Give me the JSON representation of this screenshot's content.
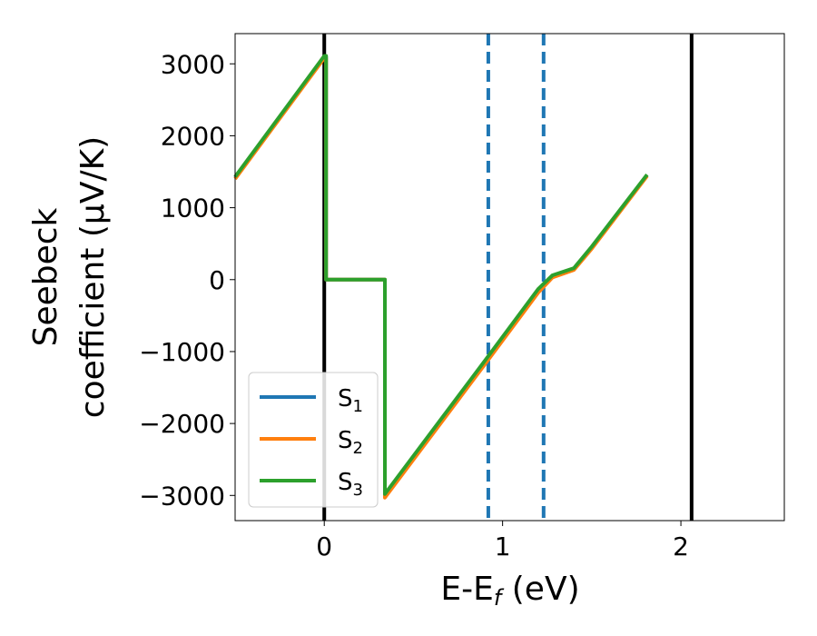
{
  "chart_data": {
    "type": "line",
    "xlabel": "E-E",
    "xlabel_sub": "f",
    "xlabel_unit": " (eV)",
    "ylabel_line1": "Seebeck",
    "ylabel_line2": "coefficient  (μV/K)",
    "xlim": [
      -0.5,
      2.58
    ],
    "ylim": [
      -3350,
      3420
    ],
    "xticks": [
      0,
      1,
      2
    ],
    "xtick_labels": [
      "0",
      "1",
      "2"
    ],
    "yticks": [
      3000,
      2000,
      1000,
      0,
      -1000,
      -2000,
      -3000
    ],
    "ytick_labels": [
      "3000",
      "2000",
      "1000",
      "0",
      "−1000",
      "−2000",
      "−3000"
    ],
    "grid": false,
    "legend_position": "lower-left",
    "series": [
      {
        "name": "S",
        "name_sub": "1",
        "color": "#1f77b4",
        "x": [
          -0.5,
          0.0,
          0.01,
          0.01,
          0.34,
          0.34,
          0.9,
          1.2,
          1.28,
          1.4,
          1.5,
          1.81
        ],
        "y": [
          1420,
          3100,
          3100,
          0,
          0,
          -3000,
          -1150,
          -150,
          50,
          150,
          450,
          1450
        ]
      },
      {
        "name": "S",
        "name_sub": "2",
        "color": "#ff7f0e",
        "x": [
          -0.5,
          0.0,
          0.01,
          0.01,
          0.34,
          0.34,
          0.9,
          1.2,
          1.28,
          1.4,
          1.5,
          1.81
        ],
        "y": [
          1400,
          3080,
          3080,
          0,
          0,
          -3030,
          -1180,
          -180,
          30,
          135,
          430,
          1440
        ]
      },
      {
        "name": "S",
        "name_sub": "3",
        "color": "#2ca02c",
        "x": [
          -0.5,
          0.0,
          0.01,
          0.01,
          0.34,
          0.34,
          0.9,
          1.2,
          1.28,
          1.4,
          1.5,
          1.81
        ],
        "y": [
          1430,
          3110,
          3110,
          0,
          0,
          -2980,
          -1130,
          -130,
          60,
          160,
          460,
          1460
        ]
      }
    ],
    "vlines": [
      {
        "x": 0.0,
        "color": "#000000",
        "style": "solid"
      },
      {
        "x": 2.06,
        "color": "#000000",
        "style": "solid"
      },
      {
        "x": 0.92,
        "color": "#1f77b4",
        "style": "dashed"
      },
      {
        "x": 1.23,
        "color": "#1f77b4",
        "style": "dashed"
      }
    ]
  }
}
